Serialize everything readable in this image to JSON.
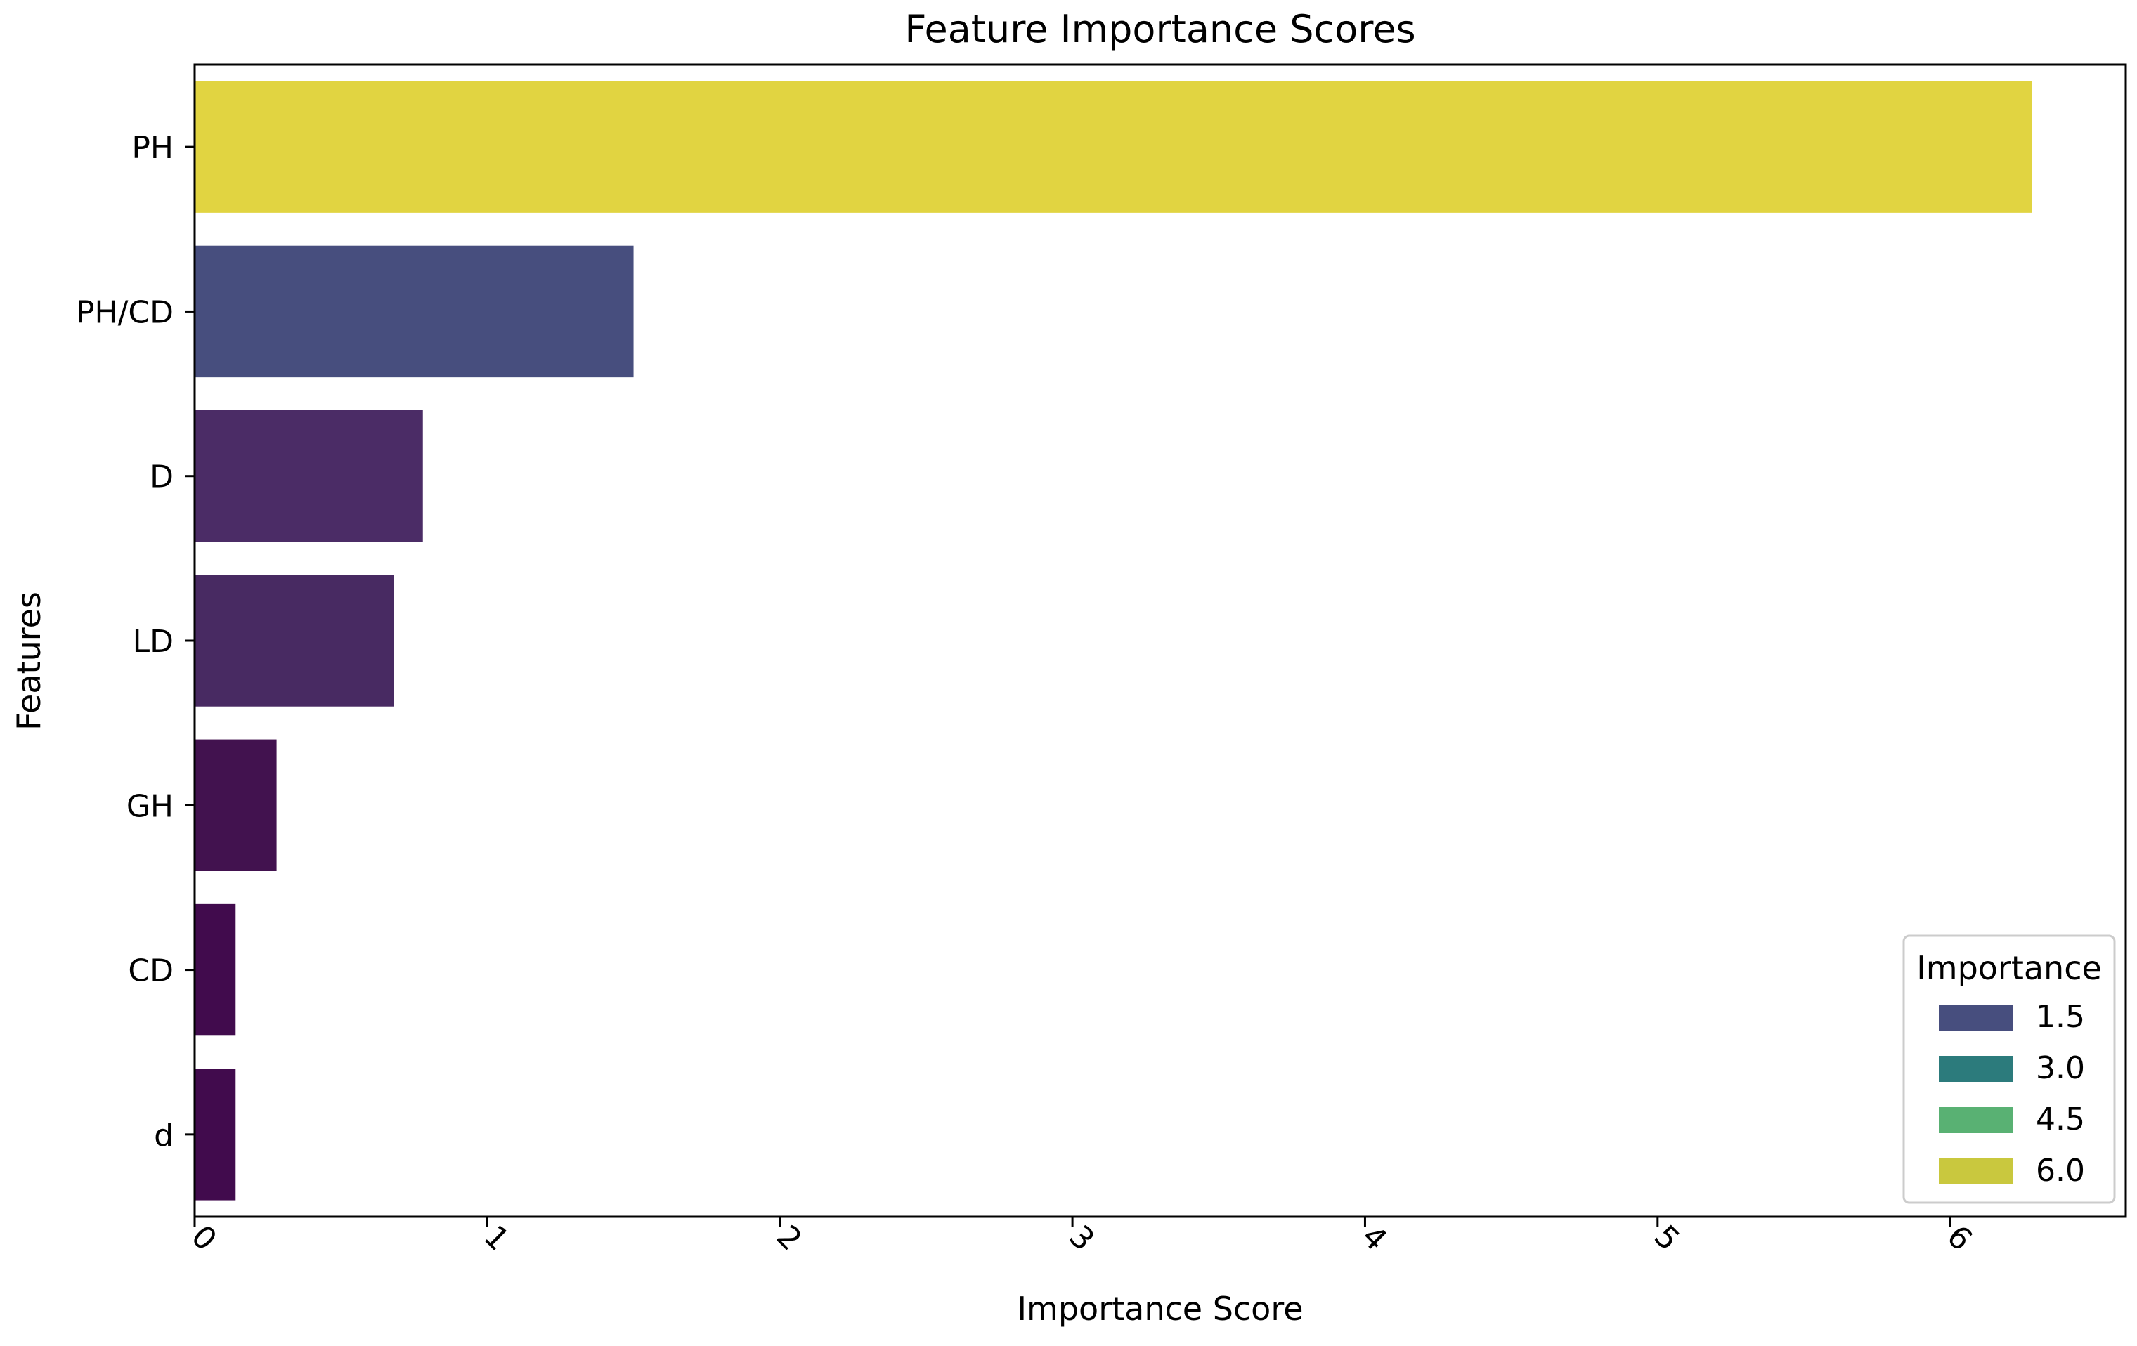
{
  "chart_data": {
    "type": "bar",
    "orientation": "horizontal",
    "title": "Feature Importance Scores",
    "xlabel": "Importance Score",
    "ylabel": "Features",
    "categories": [
      "PH",
      "PH/CD",
      "D",
      "LD",
      "GH",
      "CD",
      "d"
    ],
    "values": [
      6.28,
      1.5,
      0.78,
      0.68,
      0.28,
      0.14,
      0.14
    ],
    "bar_colors": [
      "#e1d441",
      "#474e7e",
      "#4b2c66",
      "#482a62",
      "#42124f",
      "#410b4d",
      "#410b4d"
    ],
    "xlim": [
      0,
      6.6
    ],
    "xticks": [
      0,
      1,
      2,
      3,
      4,
      5,
      6
    ],
    "xtick_labels": [
      "0",
      "1",
      "2",
      "3",
      "4",
      "5",
      "6"
    ],
    "xtick_rotation": 45,
    "grid": false,
    "legend": {
      "title": "Importance",
      "position": "lower-right",
      "entries": [
        {
          "label": "1.5",
          "color": "#474e7e"
        },
        {
          "label": "3.0",
          "color": "#2c7b7c"
        },
        {
          "label": "4.5",
          "color": "#59b173"
        },
        {
          "label": "6.0",
          "color": "#c9c83e"
        }
      ]
    }
  }
}
